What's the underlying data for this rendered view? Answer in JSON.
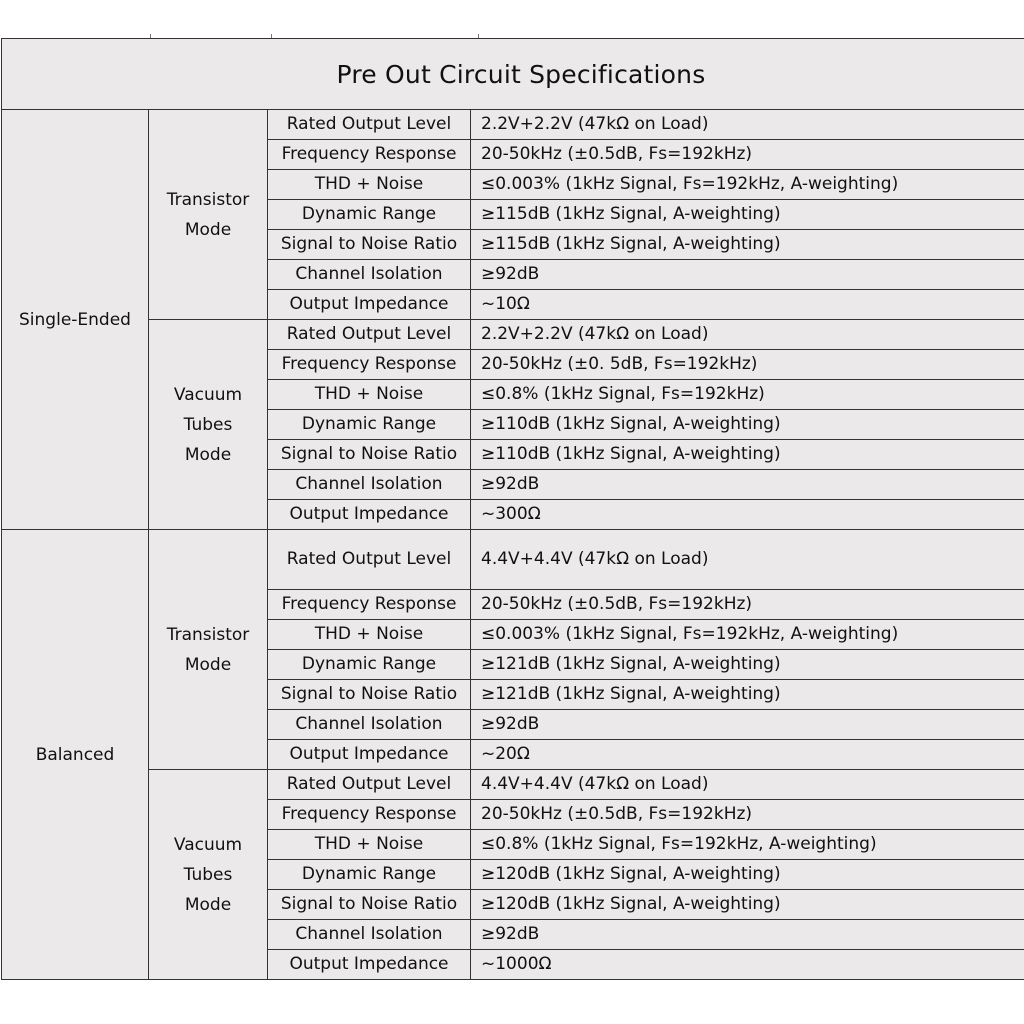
{
  "title": "Pre Out Circuit Specifications",
  "sections": [
    {
      "name": "Single-Ended",
      "modes": [
        {
          "name": "Transistor Mode",
          "rows": [
            [
              "Rated Output Level",
              "2.2V+2.2V (47kΩ on Load)"
            ],
            [
              "Frequency Response",
              "20-50kHz (±0.5dB, Fs=192kHz)"
            ],
            [
              "THD + Noise",
              "≤0.003% (1kHz Signal, Fs=192kHz, A-weighting)"
            ],
            [
              "Dynamic Range",
              "≥115dB (1kHz Signal, A-weighting)"
            ],
            [
              "Signal to Noise Ratio",
              "≥115dB (1kHz Signal, A-weighting)"
            ],
            [
              "Channel Isolation",
              "≥92dB"
            ],
            [
              "Output Impedance",
              "~10Ω"
            ]
          ]
        },
        {
          "name": "Vacuum Tubes Mode",
          "rows": [
            [
              "Rated Output Level",
              "2.2V+2.2V (47kΩ on Load)"
            ],
            [
              "Frequency Response",
              "20-50kHz (±0. 5dB, Fs=192kHz)"
            ],
            [
              "THD + Noise",
              "≤0.8% (1kHz Signal, Fs=192kHz)"
            ],
            [
              "Dynamic Range",
              "≥110dB (1kHz Signal, A-weighting)"
            ],
            [
              "Signal to Noise Ratio",
              "≥110dB (1kHz Signal, A-weighting)"
            ],
            [
              "Channel Isolation",
              "≥92dB"
            ],
            [
              "Output Impedance",
              "~300Ω"
            ]
          ]
        }
      ]
    },
    {
      "name": "Balanced",
      "modes": [
        {
          "name": "Transistor Mode",
          "rows": [
            [
              "Rated Output Level",
              "4.4V+4.4V (47kΩ on Load)"
            ],
            [
              "Frequency Response",
              "20-50kHz (±0.5dB, Fs=192kHz)"
            ],
            [
              "THD + Noise",
              "≤0.003% (1kHz Signal, Fs=192kHz, A-weighting)"
            ],
            [
              "Dynamic Range",
              "≥121dB (1kHz Signal, A-weighting)"
            ],
            [
              "Signal to Noise Ratio",
              "≥121dB (1kHz Signal, A-weighting)"
            ],
            [
              "Channel Isolation",
              "≥92dB"
            ],
            [
              "Output Impedance",
              "~20Ω"
            ]
          ]
        },
        {
          "name": "Vacuum Tubes Mode",
          "rows": [
            [
              "Rated Output Level",
              "4.4V+4.4V (47kΩ on Load)"
            ],
            [
              "Frequency Response",
              "20-50kHz (±0.5dB, Fs=192kHz)"
            ],
            [
              "THD + Noise",
              "≤0.8% (1kHz Signal, Fs=192kHz, A-weighting)"
            ],
            [
              "Dynamic Range",
              "≥120dB (1kHz Signal, A-weighting)"
            ],
            [
              "Signal to Noise Ratio",
              "≥120dB (1kHz Signal, A-weighting)"
            ],
            [
              "Channel Isolation",
              "≥92dB"
            ],
            [
              "Output Impedance",
              "~1000Ω"
            ]
          ]
        }
      ]
    }
  ]
}
